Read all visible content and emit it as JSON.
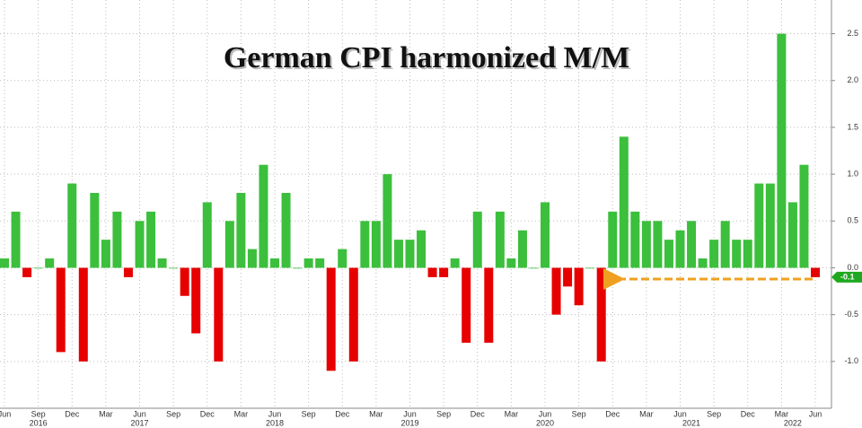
{
  "chart_data": {
    "type": "bar",
    "title": "German CPI harmonized M/M",
    "categories": [
      "Jun",
      null,
      null,
      "Sep",
      null,
      null,
      "Dec",
      null,
      null,
      "Mar",
      null,
      null,
      "Jun",
      null,
      null,
      "Sep",
      null,
      null,
      "Dec",
      null,
      null,
      "Mar",
      null,
      null,
      "Jun",
      null,
      null,
      "Sep",
      null,
      null,
      "Dec",
      null,
      null,
      "Mar",
      null,
      null,
      "Jun",
      null,
      null,
      "Sep",
      null,
      null,
      "Dec",
      null,
      null,
      "Mar",
      null,
      null,
      "Jun",
      null,
      null,
      "Sep",
      null,
      null,
      "Dec",
      null,
      null,
      "Mar",
      null,
      null,
      "Jun",
      null,
      null,
      "Sep",
      null,
      null,
      "Dec",
      null,
      null,
      "Mar",
      null,
      null,
      "Jun"
    ],
    "year_labels": [
      null,
      null,
      null,
      "2016",
      null,
      null,
      null,
      null,
      null,
      null,
      null,
      null,
      "2017",
      null,
      null,
      null,
      null,
      null,
      null,
      null,
      null,
      null,
      null,
      null,
      "2018",
      null,
      null,
      null,
      null,
      null,
      null,
      null,
      null,
      null,
      null,
      null,
      "2019",
      null,
      null,
      null,
      null,
      null,
      null,
      null,
      null,
      null,
      null,
      null,
      "2020",
      null,
      null,
      null,
      null,
      null,
      null,
      null,
      null,
      null,
      null,
      null,
      null,
      "2021",
      null,
      null,
      null,
      null,
      null,
      null,
      null,
      null,
      "2022",
      null,
      null
    ],
    "values": [
      0.1,
      0.6,
      -0.1,
      0,
      0.1,
      -0.9,
      0.9,
      -1.0,
      0.8,
      0.3,
      0.6,
      -0.1,
      0.5,
      0.6,
      0.1,
      0,
      -0.3,
      -0.7,
      0.7,
      -1.0,
      0.5,
      0.8,
      0.2,
      1.1,
      0.1,
      0.8,
      0,
      0.1,
      0.1,
      -1.1,
      0.2,
      -1.0,
      0.5,
      0.5,
      1.0,
      0.3,
      0.3,
      0.4,
      -0.1,
      -0.1,
      0.1,
      -0.8,
      0.6,
      -0.8,
      0.6,
      0.1,
      0.4,
      0,
      0.7,
      -0.5,
      -0.2,
      -0.4,
      0,
      -1.0,
      0.6,
      1.4,
      0.6,
      0.5,
      0.5,
      0.3,
      0.4,
      0.5,
      0.1,
      0.3,
      0.5,
      0.3,
      0.3,
      0.9,
      0.9,
      2.5,
      0.7,
      1.1,
      -0.1
    ],
    "positive_color": "#3cbf3c",
    "negative_color": "#e60000",
    "last_value_label": "-0.1",
    "ylim": [
      -1.5,
      2.86
    ],
    "yticks": [
      {
        "value": -1,
        "label": "-1.0"
      },
      -0.5,
      {
        "value": 0,
        "label": "0.0"
      },
      0.5,
      {
        "value": 1,
        "label": "1.0"
      },
      1.5,
      {
        "value": 2,
        "label": "2.0"
      },
      2.5
    ],
    "grid": true
  }
}
